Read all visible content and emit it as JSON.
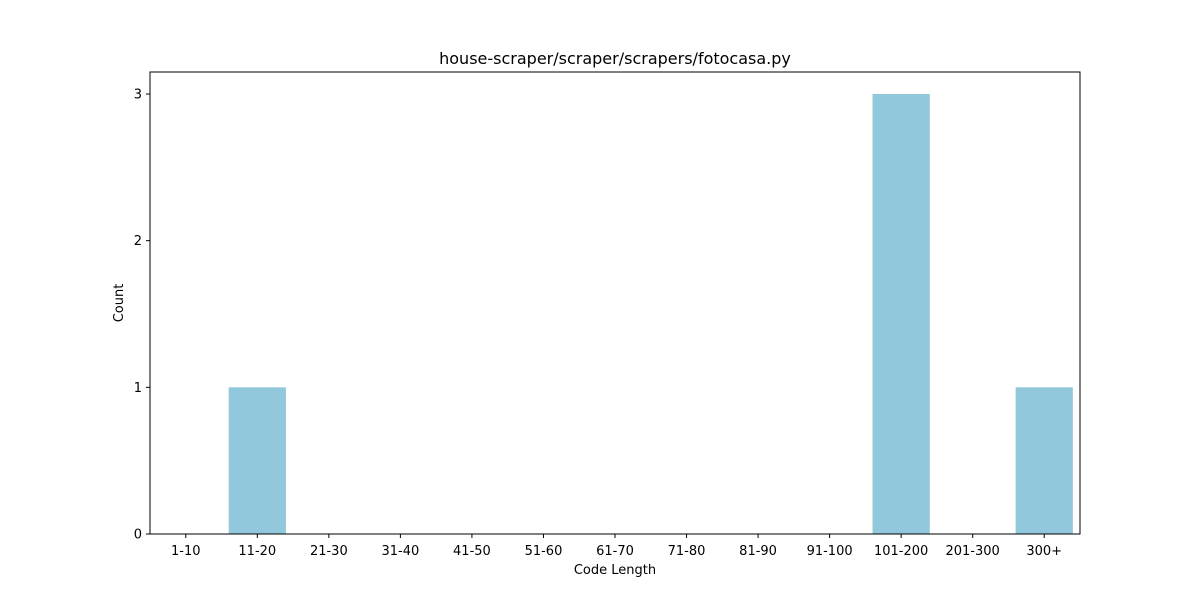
{
  "chart_data": {
    "type": "bar",
    "title": "house-scraper/scraper/scrapers/fotocasa.py",
    "xlabel": "Code Length",
    "ylabel": "Count",
    "categories": [
      "1-10",
      "11-20",
      "21-30",
      "31-40",
      "41-50",
      "51-60",
      "61-70",
      "71-80",
      "81-90",
      "91-100",
      "101-200",
      "201-300",
      "300+"
    ],
    "values": [
      0,
      1,
      0,
      0,
      0,
      0,
      0,
      0,
      0,
      0,
      3,
      0,
      1
    ],
    "ylim": [
      0,
      3.15
    ],
    "yticks": [
      0,
      1,
      2,
      3
    ],
    "grid": false,
    "bar_color": "#92c8dc"
  }
}
